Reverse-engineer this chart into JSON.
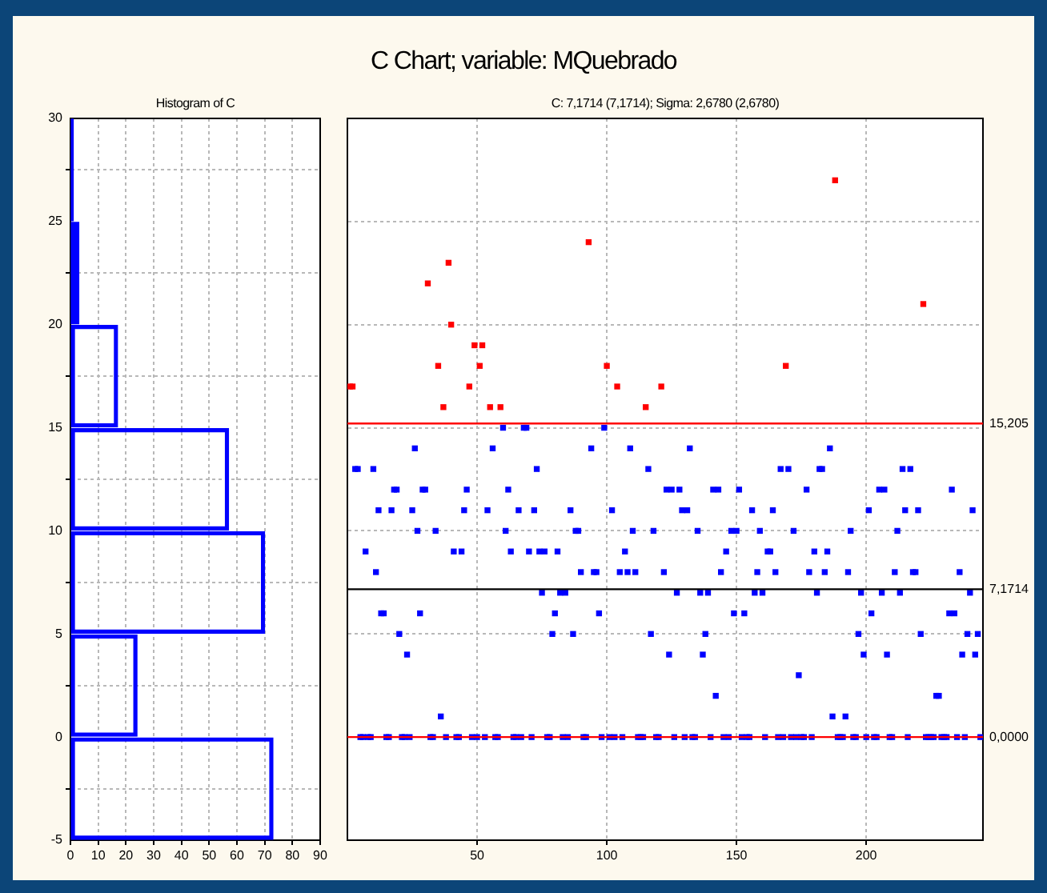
{
  "chart_data": [
    {
      "type": "histogram",
      "title": "Histogram of C",
      "orientation": "horizontal",
      "color": "#0000ff",
      "bins": [
        -5,
        0,
        5,
        10,
        15,
        20,
        25,
        30
      ],
      "values": [
        73,
        24,
        70,
        57,
        17,
        3,
        1
      ],
      "xlim": [
        0,
        90
      ],
      "xticks": [
        0,
        10,
        20,
        30,
        40,
        50,
        60,
        70,
        80,
        90
      ],
      "ylim": [
        -5,
        30
      ],
      "yticks": [
        -5,
        0,
        5,
        10,
        15,
        20,
        25,
        30
      ],
      "grid": true
    },
    {
      "type": "scatter",
      "title": "C Chart; variable: MQuebrado",
      "subtitle": "C: 7,1714 (7,1714); Sigma: 2,6780 (2,6780)",
      "series": [
        {
          "color": "#0000ff",
          "x": [
            3,
            4,
            5,
            6,
            7,
            8,
            9,
            10,
            11,
            12,
            13,
            14,
            15,
            16,
            17,
            18,
            19,
            20,
            21,
            22,
            23,
            24,
            25,
            26,
            27,
            28,
            29,
            30,
            32,
            33,
            34,
            36,
            38,
            41,
            42,
            43,
            44,
            45,
            46,
            48,
            50,
            53,
            54,
            56,
            57,
            58,
            60,
            61,
            62,
            63,
            64,
            65,
            66,
            67,
            68,
            69,
            70,
            71,
            72,
            73,
            74,
            75,
            76,
            77,
            78,
            79,
            80,
            81,
            82,
            83,
            84,
            85,
            86,
            87,
            88,
            89,
            90,
            91,
            92,
            94,
            95,
            96,
            97,
            98,
            99,
            101,
            102,
            103,
            105,
            106,
            107,
            108,
            109,
            110,
            111,
            112,
            113,
            114,
            116,
            117,
            118,
            119,
            120,
            122,
            123,
            124,
            125,
            126,
            127,
            128,
            129,
            130,
            131,
            132,
            133,
            134,
            135,
            136,
            137,
            138,
            139,
            140,
            141,
            142,
            143,
            144,
            145,
            146,
            147,
            148,
            149,
            150,
            151,
            152,
            153,
            154,
            155,
            156,
            157,
            158,
            159,
            160,
            161,
            162,
            163,
            164,
            165,
            166,
            167,
            168,
            170,
            171,
            172,
            173,
            174,
            175,
            176,
            177,
            178,
            179,
            180,
            181,
            182,
            183,
            184,
            185,
            186,
            187,
            189,
            190,
            191,
            192,
            193,
            194,
            195,
            196,
            197,
            198,
            199,
            200,
            201,
            202,
            203,
            204,
            205,
            206,
            207,
            208,
            209,
            210,
            211,
            212,
            213,
            214,
            215,
            216,
            217,
            218,
            219,
            220,
            221,
            223,
            224,
            225,
            226,
            227,
            228,
            229,
            230,
            231,
            232,
            233,
            234,
            235,
            236,
            237,
            238,
            239,
            240,
            241,
            242,
            243,
            244
          ],
          "values": [
            13,
            13,
            0,
            0,
            9,
            0,
            0,
            13,
            8,
            11,
            6,
            6,
            0,
            0,
            11,
            12,
            12,
            5,
            0,
            0,
            4,
            0,
            11,
            14,
            10,
            6,
            12,
            12,
            0,
            0,
            10,
            1,
            0,
            9,
            0,
            0,
            9,
            11,
            12,
            0,
            0,
            0,
            11,
            14,
            0,
            0,
            15,
            10,
            12,
            9,
            0,
            0,
            11,
            0,
            15,
            15,
            9,
            0,
            11,
            13,
            9,
            7,
            9,
            0,
            0,
            5,
            6,
            9,
            7,
            0,
            7,
            0,
            11,
            5,
            10,
            10,
            8,
            0,
            0,
            14,
            8,
            8,
            6,
            0,
            15,
            0,
            11,
            0,
            8,
            0,
            9,
            8,
            14,
            10,
            8,
            0,
            0,
            0,
            13,
            5,
            10,
            0,
            0,
            8,
            12,
            4,
            12,
            0,
            7,
            12,
            11,
            0,
            11,
            14,
            0,
            0,
            10,
            7,
            4,
            5,
            7,
            0,
            12,
            2,
            12,
            8,
            0,
            9,
            0,
            10,
            6,
            10,
            12,
            0,
            6,
            0,
            0,
            11,
            7,
            8,
            10,
            7,
            0,
            9,
            9,
            11,
            8,
            0,
            13,
            0,
            13,
            0,
            10,
            0,
            3,
            0,
            0,
            12,
            8,
            0,
            9,
            7,
            13,
            13,
            8,
            9,
            14,
            1,
            0,
            0,
            0,
            1,
            8,
            10,
            0,
            0,
            5,
            7,
            4,
            0,
            11,
            6,
            0,
            0,
            12,
            7,
            12,
            4,
            0,
            0,
            8,
            10,
            7,
            13,
            11,
            0,
            13,
            8,
            8,
            11,
            5,
            0,
            0,
            0,
            0,
            2,
            2,
            0,
            0,
            0,
            6,
            12,
            6,
            0,
            8,
            4,
            0,
            5,
            7,
            11,
            4,
            5,
            0
          ]
        },
        {
          "color": "#ff0000",
          "x": [
            1,
            2,
            31,
            35,
            37,
            39,
            40,
            47,
            49,
            51,
            52,
            55,
            59,
            93,
            100,
            104,
            115,
            121,
            169,
            188,
            222
          ],
          "values": [
            17,
            17,
            22,
            18,
            16,
            23,
            20,
            17,
            19,
            18,
            19,
            16,
            16,
            24,
            18,
            17,
            16,
            17,
            18,
            27,
            21
          ]
        }
      ],
      "xlim": [
        0,
        245
      ],
      "xticks": [
        50,
        100,
        150,
        200
      ],
      "ylim": [
        -5,
        30
      ],
      "yticks": [
        -5,
        0,
        5,
        10,
        15,
        20,
        25,
        30
      ],
      "tick_labels": "x",
      "grid": true,
      "marker": "square",
      "ref_lines": [
        {
          "axis": "y",
          "value": 15.205,
          "label": "15,205",
          "color": "#ff0000"
        },
        {
          "axis": "y",
          "value": 7.1714,
          "label": "7,1714",
          "color": "#000000"
        },
        {
          "axis": "y",
          "value": 0,
          "label": "0,0000",
          "color": "#ff0000"
        }
      ]
    }
  ]
}
